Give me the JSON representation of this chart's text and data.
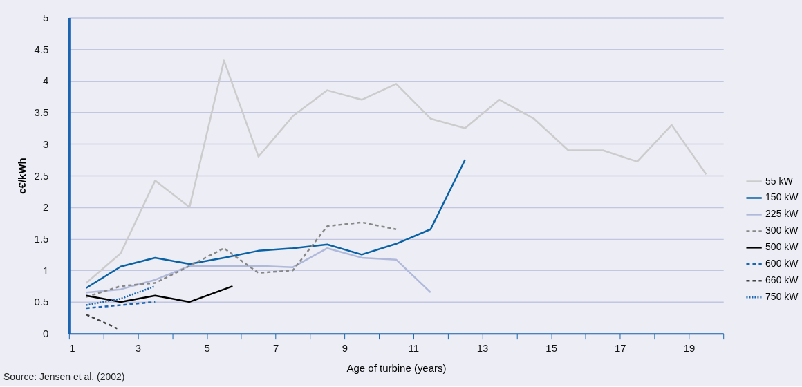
{
  "chart_data": {
    "type": "line",
    "xlabel": "Age of turbine (years)",
    "ylabel": "c€/kWh",
    "annotations": [
      "Source: Jensen et al. (2002)"
    ],
    "xlim": [
      1,
      20
    ],
    "xticks": [
      1,
      {
        "value": 2,
        "label": null
      },
      3,
      {
        "value": 4,
        "label": null
      },
      5,
      {
        "value": 6,
        "label": null
      },
      7,
      {
        "value": 8,
        "label": null
      },
      9,
      {
        "value": 10,
        "label": null
      },
      11,
      {
        "value": 12,
        "label": null
      },
      13,
      {
        "value": 14,
        "label": null
      },
      15,
      {
        "value": 16,
        "label": null
      },
      17,
      {
        "value": 18,
        "label": null
      },
      19,
      {
        "value": 20,
        "label": null
      }
    ],
    "ylim": [
      0,
      5
    ],
    "yticks": [
      0,
      0.5,
      1,
      1.5,
      2,
      2.5,
      3,
      3.5,
      4,
      4.5,
      5
    ],
    "grid": "y",
    "legend": "right",
    "marker": "none",
    "series": [
      {
        "name": "55 kW",
        "color": "#cccccc",
        "line_style": "solid",
        "x": [
          1.5,
          2.5,
          3.5,
          4.5,
          5.5,
          6.5,
          7.5,
          8.5,
          9.5,
          10.5,
          11.5,
          12.5,
          13.5,
          14.5,
          15.5,
          16.5,
          17.5,
          18.5,
          19.5
        ],
        "values": [
          0.8,
          1.27,
          2.42,
          2.0,
          4.32,
          2.8,
          3.44,
          3.85,
          3.7,
          3.95,
          3.4,
          3.25,
          3.7,
          3.4,
          2.9,
          2.9,
          2.72,
          3.3,
          2.52
        ]
      },
      {
        "name": "150 kW",
        "color": "#0a62a5",
        "line_style": "solid",
        "x": [
          1.5,
          2.5,
          3.5,
          4.5,
          5.5,
          6.5,
          7.5,
          8.5,
          9.5,
          10.5,
          11.5,
          12.5
        ],
        "values": [
          0.72,
          1.06,
          1.2,
          1.1,
          1.2,
          1.31,
          1.35,
          1.41,
          1.25,
          1.42,
          1.65,
          2.75
        ]
      },
      {
        "name": "225 kW",
        "color": "#b0b9da",
        "line_style": "solid",
        "x": [
          1.5,
          2.5,
          3.5,
          4.5,
          5.5,
          6.5,
          7.5,
          8.5,
          9.5,
          10.5,
          11.5
        ],
        "values": [
          0.65,
          0.7,
          0.85,
          1.07,
          1.07,
          1.07,
          1.05,
          1.35,
          1.2,
          1.17,
          0.65
        ]
      },
      {
        "name": "300 kW",
        "color": "#888888",
        "line_style": "dashed",
        "x": [
          1.5,
          2.5,
          3.5,
          4.5,
          5.5,
          6.5,
          7.5,
          8.5,
          9.5,
          10.5
        ],
        "values": [
          0.58,
          0.75,
          0.8,
          1.07,
          1.35,
          0.96,
          1.0,
          1.7,
          1.76,
          1.65
        ]
      },
      {
        "name": "500 kW",
        "color": "#000000",
        "line_style": "solid",
        "x": [
          1.5,
          2.5,
          3.5,
          4.5,
          5.75
        ],
        "values": [
          0.6,
          0.5,
          0.6,
          0.5,
          0.75
        ]
      },
      {
        "name": "600 kW",
        "color": "#1a64b0",
        "line_style": "dashed",
        "x": [
          1.5,
          2.5,
          3.5
        ],
        "values": [
          0.4,
          0.45,
          0.5
        ]
      },
      {
        "name": "660 kW",
        "color": "#444444",
        "line_style": "dashed",
        "x": [
          1.5,
          2.4
        ],
        "values": [
          0.3,
          0.08
        ]
      },
      {
        "name": "750 kW",
        "color": "#1a64b0",
        "line_style": "dotted",
        "x": [
          1.5,
          2.5,
          3.5
        ],
        "values": [
          0.45,
          0.55,
          0.75
        ]
      }
    ]
  }
}
